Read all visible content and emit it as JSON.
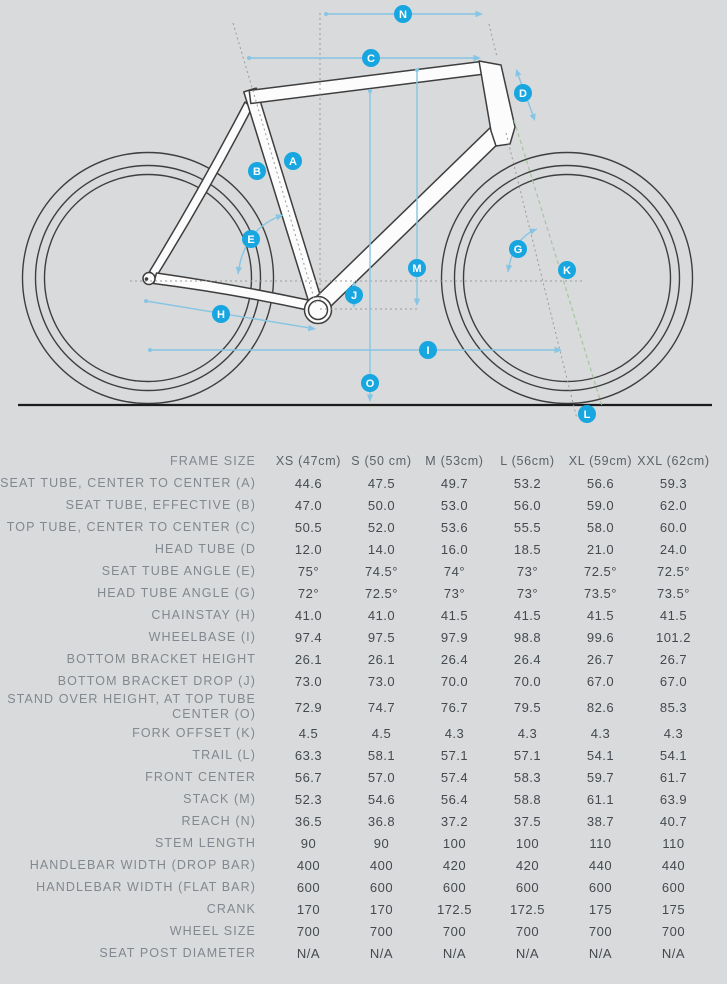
{
  "diagram": {
    "markers": {
      "A": "A",
      "B": "B",
      "C": "C",
      "D": "D",
      "E": "E",
      "G": "G",
      "H": "H",
      "I": "I",
      "J": "J",
      "K": "K",
      "L": "L",
      "M": "M",
      "N": "N",
      "O": "O"
    },
    "colors": {
      "background": "#d9dadb",
      "marker_blue": "#17a6e0",
      "measure_blue": "#86c5e4",
      "frame_outline": "#3e3e3e",
      "frame_fill": "#fcfcfc",
      "dotted_gray": "#9a9a9a",
      "steering_axis_green": "#a5c6a0",
      "ground_black": "#1c1c1c"
    }
  },
  "table": {
    "header": {
      "label": "FRAME SIZE",
      "columns": [
        "XS (47cm)",
        "S (50 cm)",
        "M (53cm)",
        "L (56cm)",
        "XL (59cm)",
        "XXL (62cm)"
      ]
    },
    "rows": [
      {
        "label": "SEAT TUBE, CENTER TO CENTER (A)",
        "values": [
          "44.6",
          "47.5",
          "49.7",
          "53.2",
          "56.6",
          "59.3"
        ]
      },
      {
        "label": "SEAT TUBE, EFFECTIVE (B)",
        "values": [
          "47.0",
          "50.0",
          "53.0",
          "56.0",
          "59.0",
          "62.0"
        ]
      },
      {
        "label": "TOP TUBE, CENTER TO CENTER (C)",
        "values": [
          "50.5",
          "52.0",
          "53.6",
          "55.5",
          "58.0",
          "60.0"
        ]
      },
      {
        "label": "HEAD TUBE (D",
        "values": [
          "12.0",
          "14.0",
          "16.0",
          "18.5",
          "21.0",
          "24.0"
        ]
      },
      {
        "label": "SEAT TUBE ANGLE (E)",
        "values": [
          "75°",
          "74.5°",
          "74°",
          "73°",
          "72.5°",
          "72.5°"
        ]
      },
      {
        "label": "HEAD TUBE ANGLE (G)",
        "values": [
          "72°",
          "72.5°",
          "73°",
          "73°",
          "73.5°",
          "73.5°"
        ]
      },
      {
        "label": "CHAINSTAY (H)",
        "values": [
          "41.0",
          "41.0",
          "41.5",
          "41.5",
          "41.5",
          "41.5"
        ]
      },
      {
        "label": "WHEELBASE (I)",
        "values": [
          "97.4",
          "97.5",
          "97.9",
          "98.8",
          "99.6",
          "101.2"
        ]
      },
      {
        "label": "BOTTOM BRACKET HEIGHT",
        "values": [
          "26.1",
          "26.1",
          "26.4",
          "26.4",
          "26.7",
          "26.7"
        ]
      },
      {
        "label": "BOTTOM BRACKET DROP (J)",
        "values": [
          "73.0",
          "73.0",
          "70.0",
          "70.0",
          "67.0",
          "67.0"
        ]
      },
      {
        "label": "STAND OVER HEIGHT, AT TOP TUBE CENTER (O)",
        "values": [
          "72.9",
          "74.7",
          "76.7",
          "79.5",
          "82.6",
          "85.3"
        ]
      },
      {
        "label": "FORK OFFSET (K)",
        "values": [
          "4.5",
          "4.5",
          "4.3",
          "4.3",
          "4.3",
          "4.3"
        ]
      },
      {
        "label": "TRAIL (L)",
        "values": [
          "63.3",
          "58.1",
          "57.1",
          "57.1",
          "54.1",
          "54.1"
        ]
      },
      {
        "label": "FRONT CENTER",
        "values": [
          "56.7",
          "57.0",
          "57.4",
          "58.3",
          "59.7",
          "61.7"
        ]
      },
      {
        "label": "STACK (M)",
        "values": [
          "52.3",
          "54.6",
          "56.4",
          "58.8",
          "61.1",
          "63.9"
        ]
      },
      {
        "label": "REACH (N)",
        "values": [
          "36.5",
          "36.8",
          "37.2",
          "37.5",
          "38.7",
          "40.7"
        ]
      },
      {
        "label": "STEM LENGTH",
        "values": [
          "90",
          "90",
          "100",
          "100",
          "110",
          "110"
        ]
      },
      {
        "label": "HANDLEBAR WIDTH (DROP BAR)",
        "values": [
          "400",
          "400",
          "420",
          "420",
          "440",
          "440"
        ]
      },
      {
        "label": "HANDLEBAR WIDTH (FLAT BAR)",
        "values": [
          "600",
          "600",
          "600",
          "600",
          "600",
          "600"
        ]
      },
      {
        "label": "CRANK",
        "values": [
          "170",
          "170",
          "172.5",
          "172.5",
          "175",
          "175"
        ]
      },
      {
        "label": "WHEEL SIZE",
        "values": [
          "700",
          "700",
          "700",
          "700",
          "700",
          "700"
        ]
      },
      {
        "label": "SEAT POST DIAMETER",
        "values": [
          "N/A",
          "N/A",
          "N/A",
          "N/A",
          "N/A",
          "N/A"
        ]
      }
    ]
  }
}
